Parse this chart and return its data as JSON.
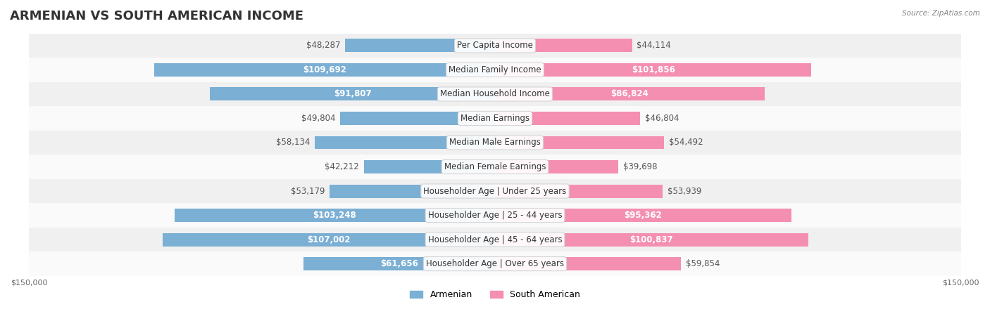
{
  "title": "ARMENIAN VS SOUTH AMERICAN INCOME",
  "source": "Source: ZipAtlas.com",
  "categories": [
    "Per Capita Income",
    "Median Family Income",
    "Median Household Income",
    "Median Earnings",
    "Median Male Earnings",
    "Median Female Earnings",
    "Householder Age | Under 25 years",
    "Householder Age | 25 - 44 years",
    "Householder Age | 45 - 64 years",
    "Householder Age | Over 65 years"
  ],
  "armenian_values": [
    48287,
    109692,
    91807,
    49804,
    58134,
    42212,
    53179,
    103248,
    107002,
    61656
  ],
  "south_american_values": [
    44114,
    101856,
    86824,
    46804,
    54492,
    39698,
    53939,
    95362,
    100837,
    59854
  ],
  "armenian_labels": [
    "$48,287",
    "$109,692",
    "$91,807",
    "$49,804",
    "$58,134",
    "$42,212",
    "$53,179",
    "$103,248",
    "$107,002",
    "$61,656"
  ],
  "south_american_labels": [
    "$44,114",
    "$101,856",
    "$86,824",
    "$46,804",
    "$54,492",
    "$39,698",
    "$53,939",
    "$95,362",
    "$100,837",
    "$59,854"
  ],
  "armenian_color": "#7bafd4",
  "armenian_color_dark": "#5b9abf",
  "south_american_color": "#f48fb1",
  "south_american_color_dark": "#e07090",
  "max_value": 150000,
  "background_color": "#ffffff",
  "row_bg_color": "#f0f0f0",
  "row_bg_color_alt": "#fafafa",
  "title_fontsize": 13,
  "label_fontsize": 8.5,
  "legend_fontsize": 9,
  "axis_label_fontsize": 8
}
